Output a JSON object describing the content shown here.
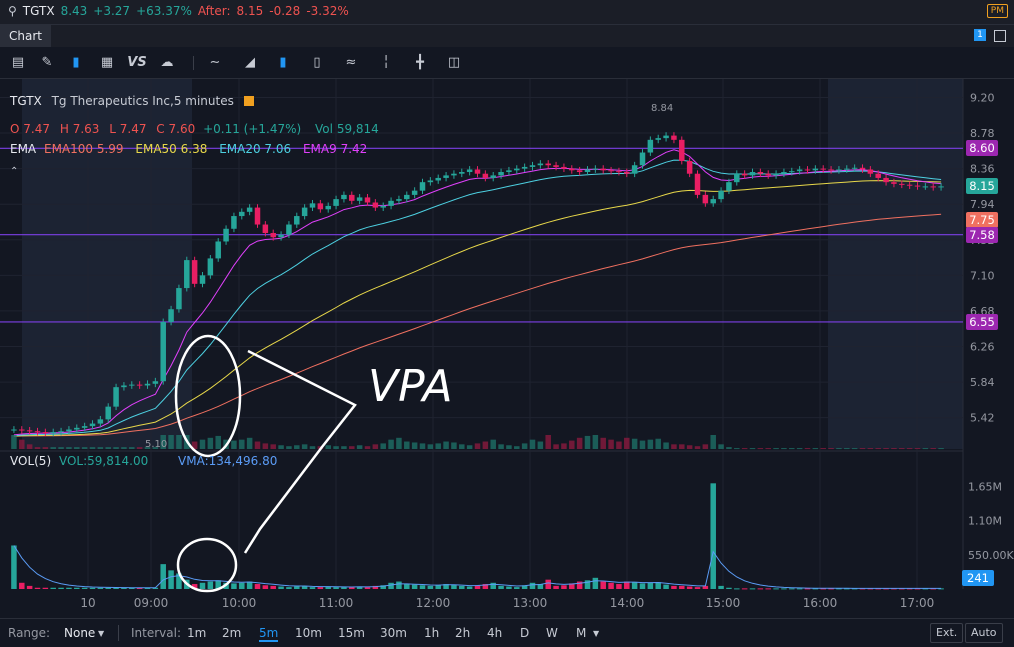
{
  "header": {
    "symbol": "TGTX",
    "last": "8.43",
    "change": "+3.27",
    "change_pct": "+63.37%",
    "after_label": "After:",
    "after_price": "8.15",
    "after_change": "-0.28",
    "after_change_pct": "-3.32%",
    "session_badge": "PM"
  },
  "tabs": {
    "chart": "Chart",
    "count": "1"
  },
  "toolbar": {
    "icons": [
      "chart-type-icon",
      "draw-icon",
      "candles-icon",
      "layout-icon",
      "compare-icon",
      "cloud-icon",
      "line-icon",
      "area-icon",
      "candle-icon",
      "hollow-candle-icon",
      "wave-icon",
      "bar-icon",
      "ohlc-icon",
      "heikin-icon"
    ],
    "vs_label": "VS"
  },
  "legend": {
    "title_symbol": "TGTX",
    "title_name": "Tg Therapeutics Inc,5 minutes",
    "o_label": "O",
    "o": "7.47",
    "h_label": "H",
    "h": "7.63",
    "l_label": "L",
    "l": "7.47",
    "c_label": "C",
    "c": "7.60",
    "chg": "+0.11 (+1.47%)",
    "vol_label": "Vol",
    "vol": "59,814",
    "ema_label": "EMA",
    "ema100": "EMA100 5.99",
    "ema50": "EMA50 6.38",
    "ema20": "EMA20 7.06",
    "ema9": "EMA9 7.42",
    "high_marker": "8.84",
    "low_marker": "5.10"
  },
  "volume_legend": {
    "label": "VOL(5)",
    "vol": "VOL:59,814.00",
    "vma": "VMA:134,496.80"
  },
  "annotation": "VPA",
  "price_axis": [
    "9.20",
    "8.78",
    "8.36",
    "7.94",
    "7.52",
    "7.10",
    "6.68",
    "6.26",
    "5.84",
    "5.42"
  ],
  "price_labels": [
    {
      "text": "8.60",
      "value": 8.6,
      "color": "#9c27b0"
    },
    {
      "text": "8.15",
      "value": 8.15,
      "color": "#26a69a"
    },
    {
      "text": "7.75",
      "value": 7.75,
      "color": "#f07060"
    },
    {
      "text": "7.58",
      "value": 7.58,
      "color": "#9c27b0"
    },
    {
      "text": "6.55",
      "value": 6.55,
      "color": "#9c27b0"
    }
  ],
  "volume_axis": [
    "1.65M",
    "1.10M",
    "550.00K"
  ],
  "volume_label": "241",
  "time_axis": [
    "10",
    "09:00",
    "10:00",
    "11:00",
    "12:00",
    "13:00",
    "14:00",
    "15:00",
    "16:00",
    "17:00"
  ],
  "bottom": {
    "range_label": "Range:",
    "range_value": "None",
    "interval_label": "Interval:",
    "intervals": [
      "1m",
      "2m",
      "5m",
      "10m",
      "15m",
      "30m",
      "1h",
      "2h",
      "4h",
      "D",
      "W",
      "M"
    ],
    "active_interval": "5m",
    "ext": "Ext.",
    "auto": "Auto"
  },
  "chart_data": {
    "type": "candlestick",
    "horizontal_lines": [
      8.6,
      7.58,
      6.55
    ],
    "ylim": [
      5.05,
      9.3
    ],
    "close_path": [
      5.28,
      5.27,
      5.26,
      5.25,
      5.24,
      5.25,
      5.26,
      5.28,
      5.3,
      5.32,
      5.35,
      5.4,
      5.55,
      5.78,
      5.8,
      5.81,
      5.8,
      5.82,
      5.85,
      6.55,
      6.7,
      6.95,
      7.28,
      7.0,
      7.1,
      7.3,
      7.5,
      7.65,
      7.8,
      7.85,
      7.9,
      7.7,
      7.6,
      7.55,
      7.58,
      7.7,
      7.8,
      7.9,
      7.95,
      7.88,
      7.92,
      8.0,
      8.05,
      7.98,
      8.02,
      7.96,
      7.9,
      7.92,
      7.98,
      8.0,
      8.05,
      8.1,
      8.2,
      8.22,
      8.25,
      8.28,
      8.3,
      8.32,
      8.35,
      8.3,
      8.25,
      8.28,
      8.32,
      8.34,
      8.36,
      8.38,
      8.4,
      8.42,
      8.4,
      8.38,
      8.36,
      8.34,
      8.32,
      8.35,
      8.36,
      8.34,
      8.33,
      8.32,
      8.3,
      8.4,
      8.55,
      8.7,
      8.72,
      8.75,
      8.7,
      8.45,
      8.3,
      8.05,
      7.95,
      8.0,
      8.1,
      8.2,
      8.3,
      8.28,
      8.32,
      8.3,
      8.28,
      8.3,
      8.32,
      8.33,
      8.35,
      8.34,
      8.36,
      8.35,
      8.34,
      8.35,
      8.36,
      8.37,
      8.35,
      8.3,
      8.25,
      8.2,
      8.18,
      8.17,
      8.16,
      8.15,
      8.15,
      8.14,
      8.15
    ],
    "volume_path": [
      0.7,
      0.1,
      0.05,
      0.02,
      0.02,
      0.02,
      0.02,
      0.02,
      0.02,
      0.02,
      0.02,
      0.02,
      0.02,
      0.02,
      0.02,
      0.02,
      0.02,
      0.02,
      0.02,
      0.4,
      0.3,
      0.25,
      0.15,
      0.08,
      0.1,
      0.12,
      0.14,
      0.1,
      0.09,
      0.1,
      0.12,
      0.08,
      0.06,
      0.05,
      0.04,
      0.03,
      0.04,
      0.05,
      0.03,
      0.03,
      0.04,
      0.03,
      0.03,
      0.03,
      0.04,
      0.03,
      0.05,
      0.06,
      0.1,
      0.12,
      0.08,
      0.07,
      0.06,
      0.05,
      0.06,
      0.08,
      0.07,
      0.05,
      0.04,
      0.06,
      0.08,
      0.1,
      0.05,
      0.04,
      0.03,
      0.06,
      0.1,
      0.08,
      0.15,
      0.05,
      0.06,
      0.09,
      0.12,
      0.14,
      0.18,
      0.12,
      0.1,
      0.08,
      0.12,
      0.11,
      0.09,
      0.1,
      0.11,
      0.07,
      0.05,
      0.05,
      0.04,
      0.03,
      0.05,
      1.7,
      0.05,
      0.02,
      0.01,
      0.01,
      0.01,
      0.01,
      0.01,
      0.01,
      0.01,
      0.01,
      0.01,
      0.01,
      0.01,
      0.01,
      0.01,
      0.01,
      0.01,
      0.01,
      0.01,
      0.01,
      0.01,
      0.01,
      0.01,
      0.01,
      0.01,
      0.01,
      0.01,
      0.01,
      0.01
    ],
    "ema_series": [
      {
        "name": "EMA100",
        "color": "#f07060",
        "value": 5.99
      },
      {
        "name": "EMA50",
        "color": "#e8d84a",
        "value": 6.38
      },
      {
        "name": "EMA20",
        "color": "#4dd0e1",
        "value": 7.06
      },
      {
        "name": "EMA9",
        "color": "#e040fb",
        "value": 7.42
      }
    ]
  }
}
